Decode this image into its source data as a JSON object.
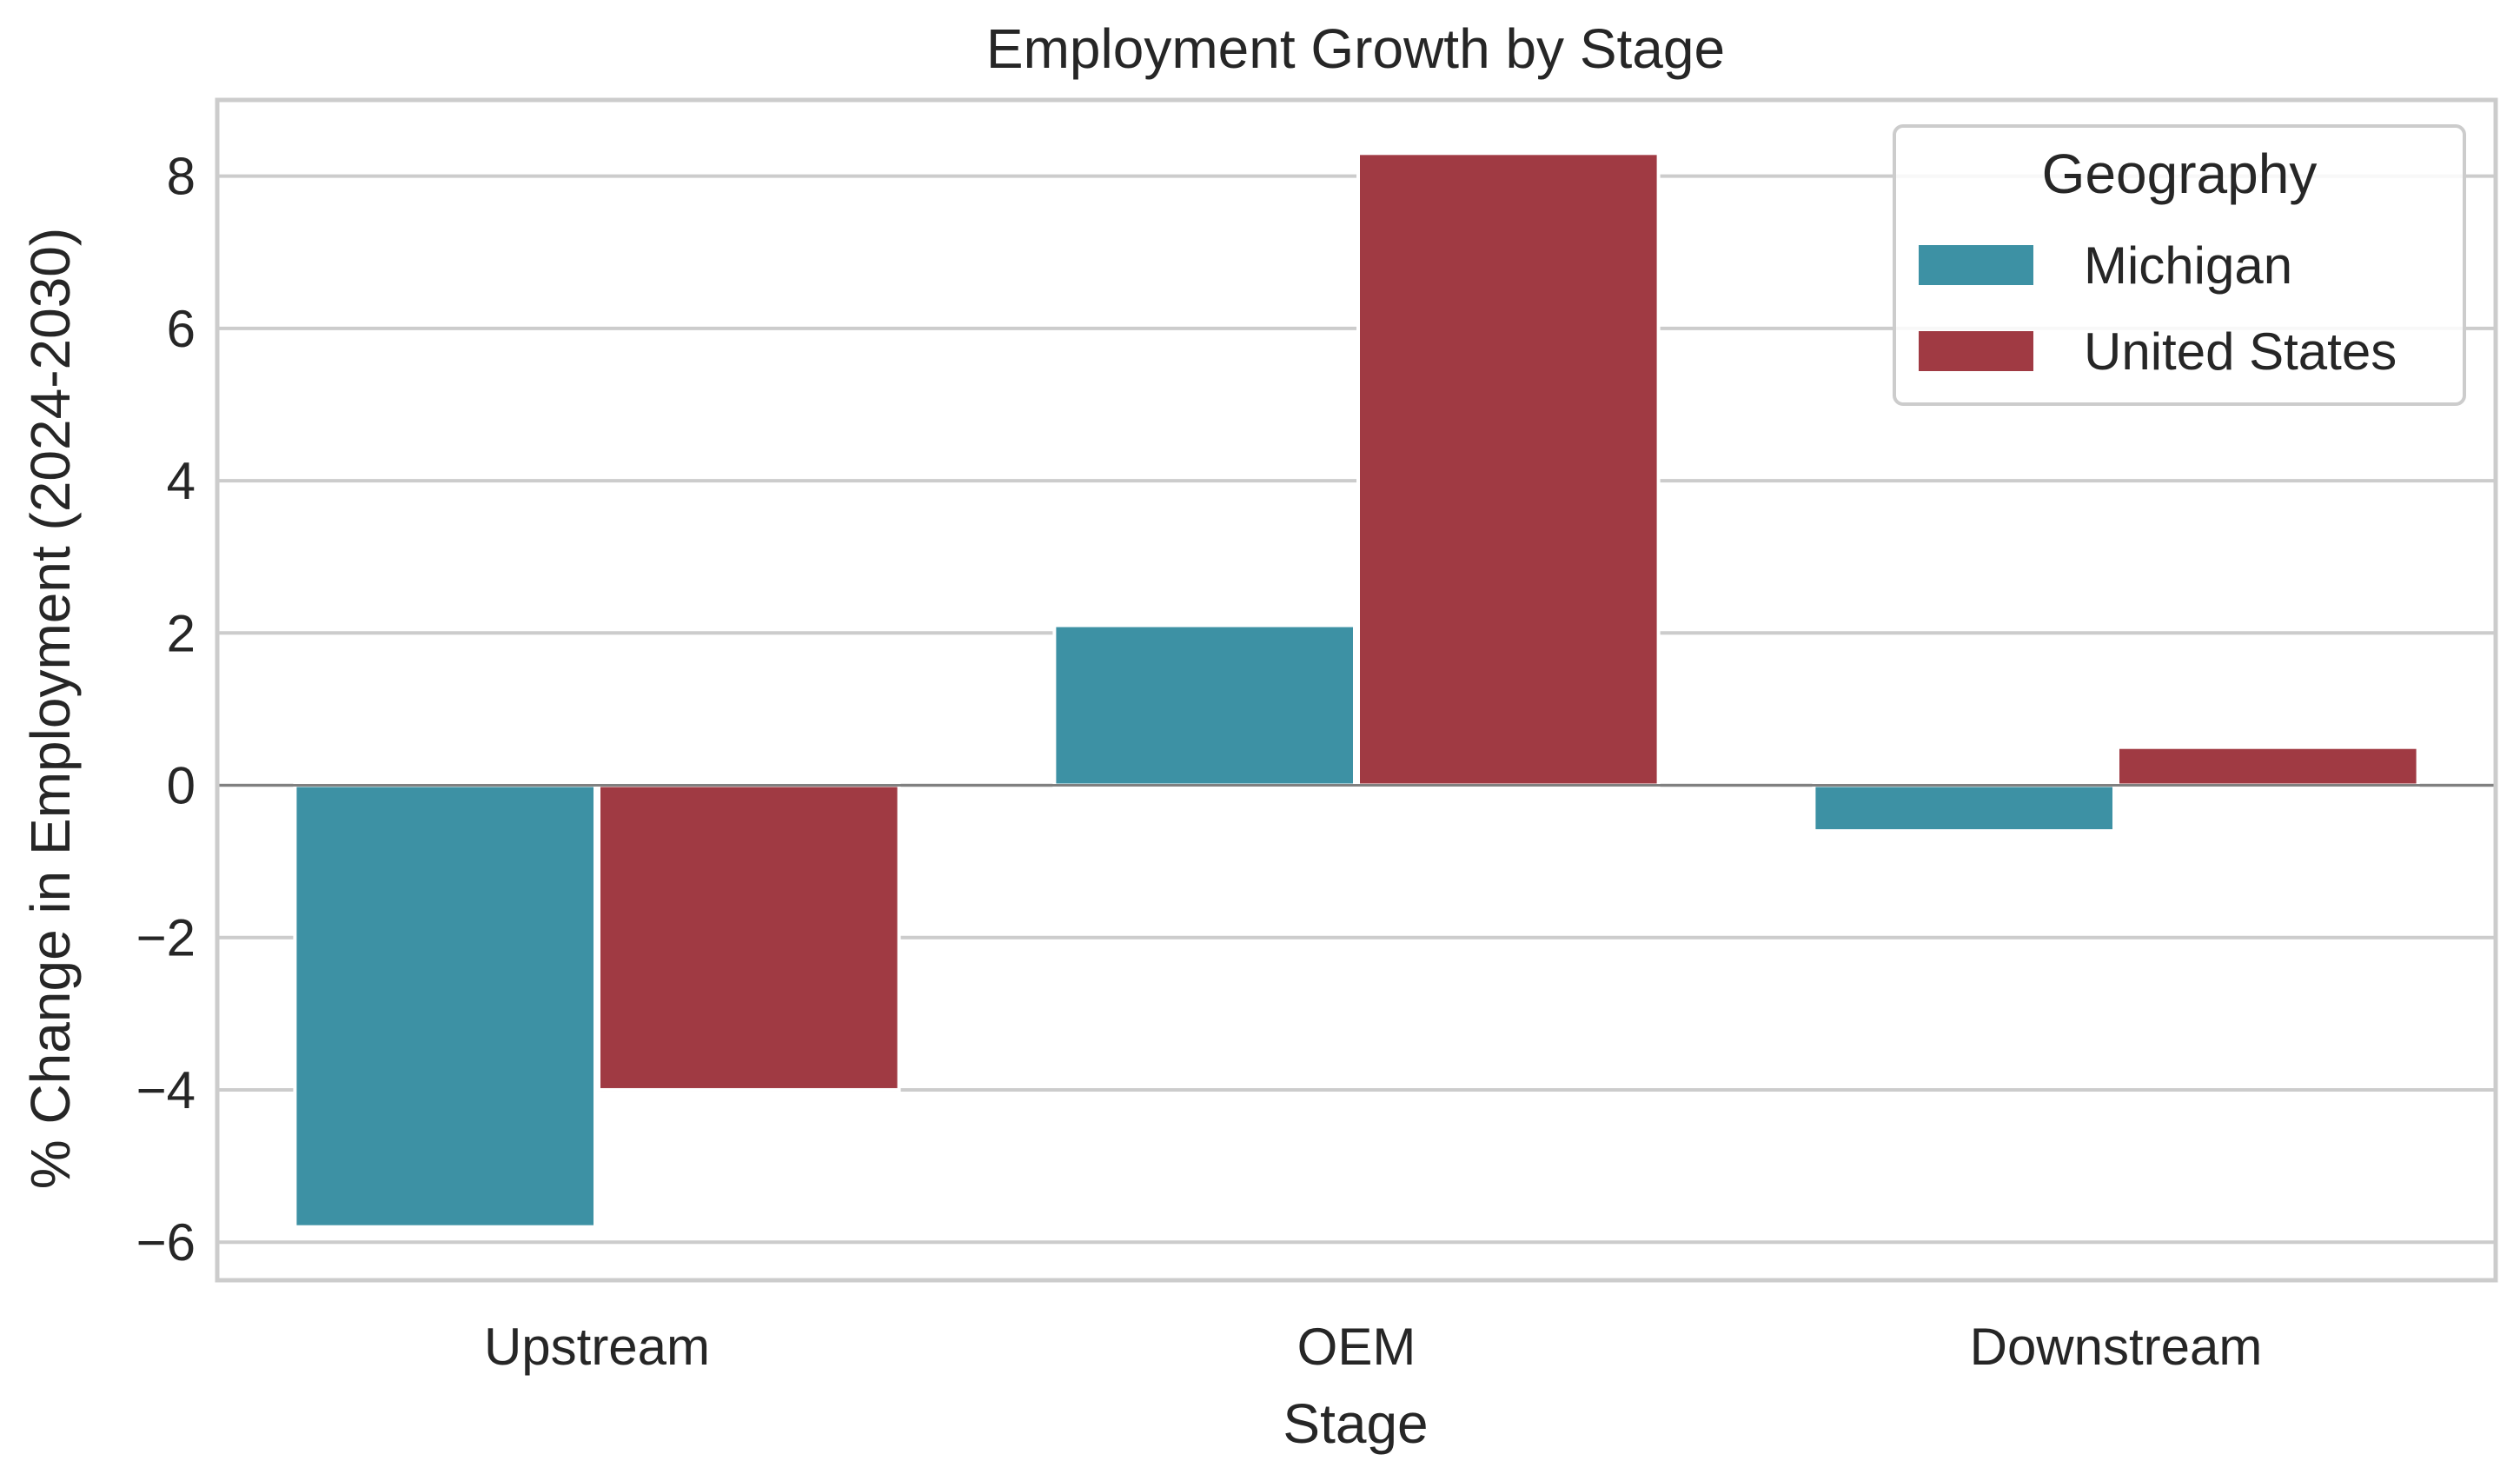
{
  "chart_data": {
    "type": "bar",
    "title": "Employment Growth by Stage",
    "xlabel": "Stage",
    "ylabel": "% Change in Employment (2024-2030)",
    "categories": [
      "Upstream",
      "OEM",
      "Downstream"
    ],
    "series": [
      {
        "name": "Michigan",
        "values": [
          -5.8,
          2.1,
          -0.6
        ],
        "color": "#3d91a4"
      },
      {
        "name": "United States",
        "values": [
          -4.0,
          8.3,
          0.5
        ],
        "color": "#a03a43"
      }
    ],
    "ylim": [
      -6.5,
      9
    ],
    "yticks": [
      -6,
      -4,
      -2,
      0,
      2,
      4,
      6,
      8
    ],
    "ytick_labels": [
      "−6",
      "−4",
      "−2",
      "0",
      "2",
      "4",
      "6",
      "8"
    ],
    "grid": true,
    "legend": {
      "title": "Geography",
      "placement": "top-right"
    }
  }
}
